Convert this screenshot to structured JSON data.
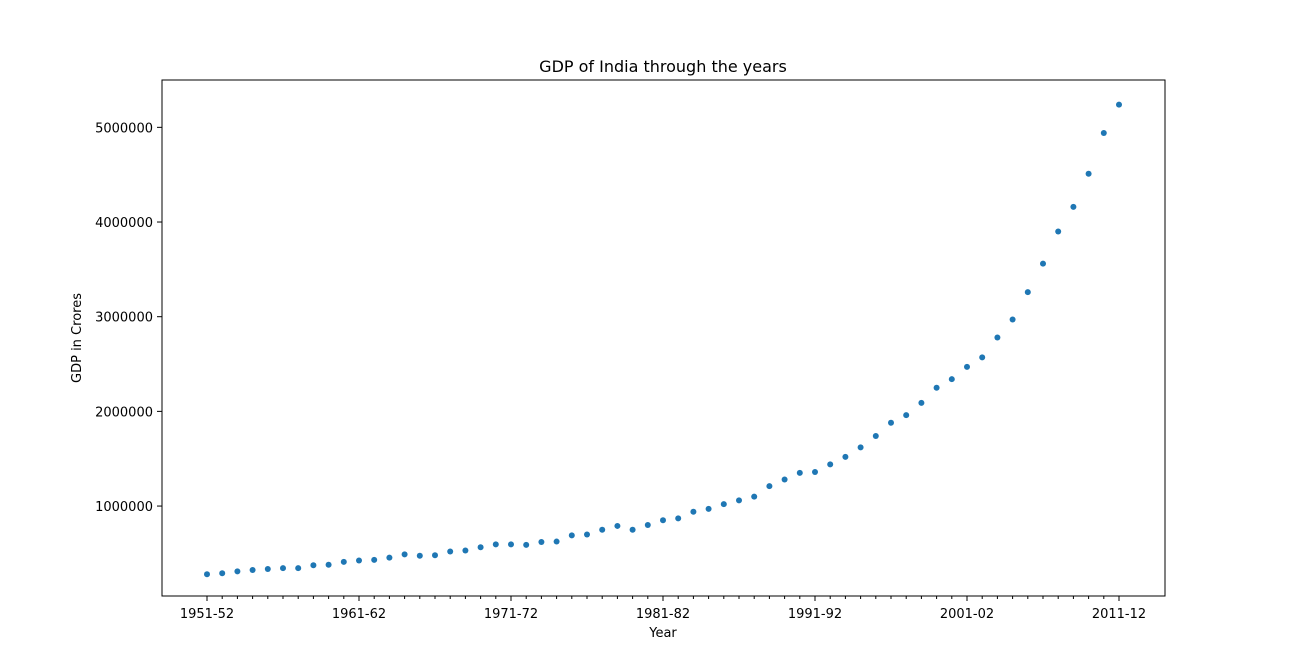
{
  "colors": {
    "marker": "#1f77b4",
    "axis": "#000000",
    "background": "#ffffff"
  },
  "chart_data": {
    "type": "scatter",
    "title": "GDP of India through the years",
    "xlabel": "Year",
    "ylabel": "GDP in Crores",
    "grid": false,
    "legend": "none",
    "x_tick_labels": [
      "1951-52",
      "1961-62",
      "1971-72",
      "1981-82",
      "1991-92",
      "2001-02",
      "2011-12"
    ],
    "y_tick_values": [
      1000000,
      2000000,
      3000000,
      4000000,
      5000000
    ],
    "y_tick_labels": [
      "1000000",
      "2000000",
      "3000000",
      "4000000",
      "5000000"
    ],
    "ylim": [
      50000,
      5500000
    ],
    "x": [
      "1951-52",
      "1952-53",
      "1953-54",
      "1954-55",
      "1955-56",
      "1956-57",
      "1957-58",
      "1958-59",
      "1959-60",
      "1960-61",
      "1961-62",
      "1962-63",
      "1963-64",
      "1964-65",
      "1965-66",
      "1966-67",
      "1967-68",
      "1968-69",
      "1969-70",
      "1970-71",
      "1971-72",
      "1972-73",
      "1973-74",
      "1974-75",
      "1975-76",
      "1976-77",
      "1977-78",
      "1978-79",
      "1979-80",
      "1980-81",
      "1981-82",
      "1982-83",
      "1983-84",
      "1984-85",
      "1985-86",
      "1986-87",
      "1987-88",
      "1988-89",
      "1989-90",
      "1990-91",
      "1991-92",
      "1992-93",
      "1993-94",
      "1994-95",
      "1995-96",
      "1996-97",
      "1997-98",
      "1998-99",
      "1999-00",
      "2000-01",
      "2001-02",
      "2002-03",
      "2003-04",
      "2004-05",
      "2005-06",
      "2006-07",
      "2007-08",
      "2008-09",
      "2009-10",
      "2010-11",
      "2011-12"
    ],
    "values": [
      280000,
      290000,
      310000,
      325000,
      335000,
      345000,
      345000,
      375000,
      380000,
      410000,
      425000,
      432000,
      455000,
      490000,
      475000,
      480000,
      520000,
      530000,
      565000,
      595000,
      595000,
      590000,
      620000,
      625000,
      690000,
      700000,
      750000,
      790000,
      750000,
      800000,
      850000,
      870000,
      940000,
      970000,
      1020000,
      1060000,
      1100000,
      1210000,
      1280000,
      1350000,
      1360000,
      1440000,
      1520000,
      1620000,
      1740000,
      1880000,
      1960000,
      2090000,
      2250000,
      2340000,
      2470000,
      2570000,
      2780000,
      2970000,
      3260000,
      3560000,
      3900000,
      4160000,
      4510000,
      4940000,
      5240000
    ]
  }
}
